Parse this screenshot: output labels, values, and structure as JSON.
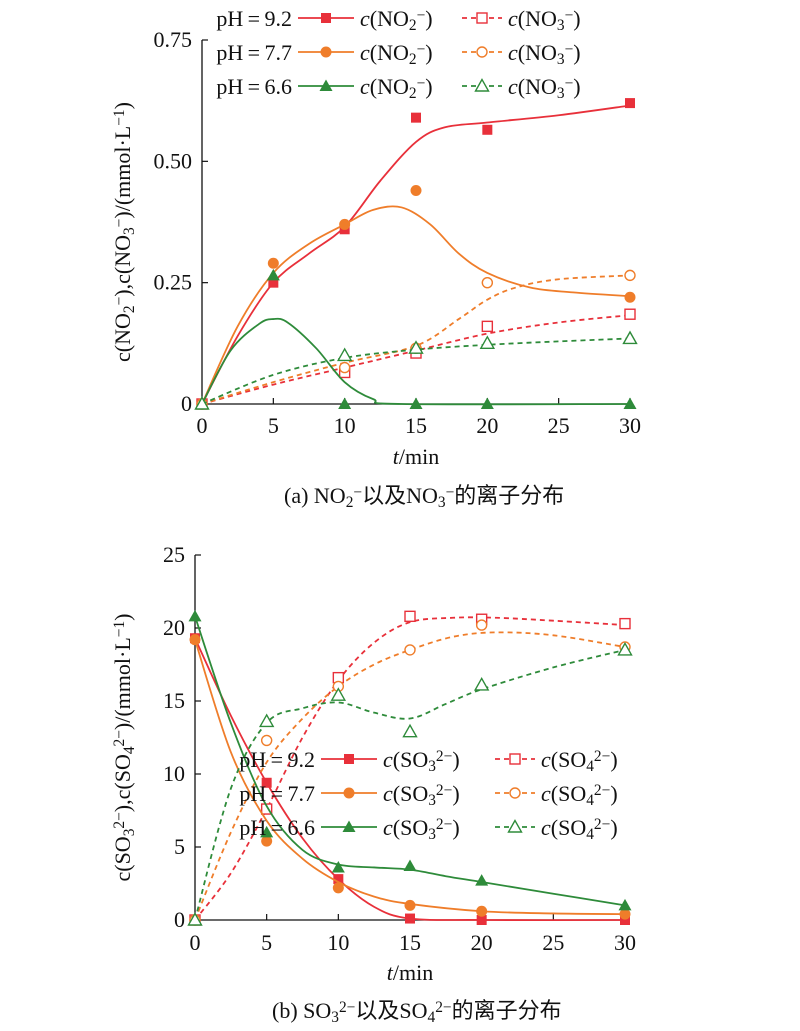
{
  "chart_data": [
    {
      "type": "line",
      "caption": "(a) NO₂⁻以及NO₃⁻的离子分布",
      "xlabel": "t/min",
      "ylabel": "c(NO₂⁻),c(NO₃⁻)/(mmol·L⁻¹)",
      "xlim": [
        0,
        30
      ],
      "ylim": [
        0,
        0.75
      ],
      "xticks": [
        0,
        5,
        10,
        15,
        20,
        25,
        30
      ],
      "xtick_labels": [
        "0",
        "5",
        "10",
        "15",
        "20",
        "25",
        "30"
      ],
      "yticks": [
        0,
        0.25,
        0.5,
        0.75
      ],
      "ytick_labels": [
        "0",
        "0.25",
        "0.50",
        "0.75"
      ],
      "grid": false,
      "legend_position": "top-left",
      "series": [
        {
          "name": "pH=9.2 c(NO₂⁻)",
          "group": "pH=9.2",
          "label": "c(NO₂⁻)",
          "color": "#e8303a",
          "marker": "square",
          "filled": true,
          "dash": false,
          "x": [
            0,
            5,
            10,
            15,
            20,
            30
          ],
          "y": [
            0,
            0.25,
            0.36,
            0.59,
            0.565,
            0.62
          ],
          "curve": [
            [
              0,
              0
            ],
            [
              2.5,
              0.14
            ],
            [
              5,
              0.25
            ],
            [
              7.5,
              0.31
            ],
            [
              10,
              0.365
            ],
            [
              12.5,
              0.46
            ],
            [
              15,
              0.54
            ],
            [
              17,
              0.57
            ],
            [
              20,
              0.58
            ],
            [
              25,
              0.595
            ],
            [
              30,
              0.615
            ]
          ]
        },
        {
          "name": "pH=9.2 c(NO₃⁻)",
          "group": "pH=9.2",
          "label": "c(NO₃⁻)",
          "color": "#e8303a",
          "marker": "square",
          "filled": false,
          "dash": true,
          "x": [
            0,
            10,
            15,
            20,
            30
          ],
          "y": [
            0,
            0.065,
            0.105,
            0.16,
            0.185
          ],
          "curve": [
            [
              0,
              0
            ],
            [
              5,
              0.04
            ],
            [
              10,
              0.075
            ],
            [
              15,
              0.11
            ],
            [
              20,
              0.145
            ],
            [
              25,
              0.168
            ],
            [
              30,
              0.183
            ]
          ]
        },
        {
          "name": "pH=7.7 c(NO₂⁻)",
          "group": "pH=7.7",
          "label": "c(NO₂⁻)",
          "color": "#ef7d2a",
          "marker": "circle",
          "filled": true,
          "dash": false,
          "x": [
            0,
            5,
            10,
            15,
            20,
            30
          ],
          "y": [
            0,
            0.29,
            0.37,
            0.44,
            0.25,
            0.22
          ],
          "curve": [
            [
              0,
              0
            ],
            [
              2.5,
              0.16
            ],
            [
              5,
              0.27
            ],
            [
              7.5,
              0.33
            ],
            [
              10,
              0.37
            ],
            [
              12,
              0.4
            ],
            [
              14,
              0.405
            ],
            [
              16,
              0.37
            ],
            [
              18,
              0.31
            ],
            [
              20,
              0.27
            ],
            [
              23,
              0.24
            ],
            [
              26,
              0.23
            ],
            [
              30,
              0.222
            ]
          ]
        },
        {
          "name": "pH=7.7 c(NO₃⁻)",
          "group": "pH=7.7",
          "label": "c(NO₃⁻)",
          "color": "#ef7d2a",
          "marker": "circle",
          "filled": false,
          "dash": true,
          "x": [
            0,
            10,
            15,
            20,
            30
          ],
          "y": [
            0,
            0.075,
            0.115,
            0.25,
            0.265
          ],
          "curve": [
            [
              0,
              0
            ],
            [
              5,
              0.045
            ],
            [
              10,
              0.085
            ],
            [
              15,
              0.12
            ],
            [
              18,
              0.175
            ],
            [
              20,
              0.215
            ],
            [
              22,
              0.24
            ],
            [
              25,
              0.257
            ],
            [
              30,
              0.265
            ]
          ]
        },
        {
          "name": "pH=6.6 c(NO₂⁻)",
          "group": "pH=6.6",
          "label": "c(NO₂⁻)",
          "color": "#2e8b3a",
          "marker": "triangle",
          "filled": true,
          "dash": false,
          "x": [
            0,
            5,
            10,
            15,
            20,
            30
          ],
          "y": [
            0,
            0.265,
            0,
            0,
            0,
            0
          ],
          "curve": [
            [
              0,
              0
            ],
            [
              2,
              0.11
            ],
            [
              4,
              0.165
            ],
            [
              5,
              0.175
            ],
            [
              6,
              0.168
            ],
            [
              8,
              0.115
            ],
            [
              10,
              0.045
            ],
            [
              12,
              0.01
            ],
            [
              14,
              0
            ],
            [
              30,
              0
            ]
          ]
        },
        {
          "name": "pH=6.6 c(NO₃⁻)",
          "group": "pH=6.6",
          "label": "c(NO₃⁻)",
          "color": "#2e8b3a",
          "marker": "triangle",
          "filled": false,
          "dash": true,
          "x": [
            0,
            10,
            15,
            20,
            30
          ],
          "y": [
            0,
            0.1,
            0.115,
            0.125,
            0.135
          ],
          "curve": [
            [
              0,
              0
            ],
            [
              5,
              0.06
            ],
            [
              10,
              0.095
            ],
            [
              15,
              0.112
            ],
            [
              20,
              0.122
            ],
            [
              25,
              0.129
            ],
            [
              30,
              0.135
            ]
          ]
        }
      ]
    },
    {
      "type": "line",
      "caption": "(b) SO₃²⁻以及SO₄²⁻的离子分布",
      "xlabel": "t/min",
      "ylabel": "c(SO₃²⁻),c(SO₄²⁻)/(mmol·L⁻¹)",
      "xlim": [
        0,
        30
      ],
      "ylim": [
        0,
        25
      ],
      "xticks": [
        0,
        5,
        10,
        15,
        20,
        25,
        30
      ],
      "xtick_labels": [
        "0",
        "5",
        "10",
        "15",
        "20",
        "25",
        "30"
      ],
      "yticks": [
        0,
        5,
        10,
        15,
        20,
        25
      ],
      "ytick_labels": [
        "0",
        "5",
        "10",
        "15",
        "20",
        "25"
      ],
      "grid": false,
      "legend_position": "center-right",
      "series": [
        {
          "name": "pH=9.2 c(SO₃²⁻)",
          "group": "pH=9.2",
          "label": "c(SO₃²⁻)",
          "color": "#e8303a",
          "marker": "square",
          "filled": true,
          "dash": false,
          "x": [
            0,
            5,
            10,
            15,
            20,
            30
          ],
          "y": [
            19.3,
            9.4,
            2.8,
            0.1,
            0,
            0
          ],
          "curve": [
            [
              0,
              19.3
            ],
            [
              2.5,
              14
            ],
            [
              5,
              9.4
            ],
            [
              7.5,
              5.6
            ],
            [
              10,
              2.8
            ],
            [
              12.5,
              0.9
            ],
            [
              15,
              0.1
            ],
            [
              20,
              0
            ],
            [
              30,
              0
            ]
          ]
        },
        {
          "name": "pH=9.2 c(SO₄²⁻)",
          "group": "pH=9.2",
          "label": "c(SO₄²⁻)",
          "color": "#e8303a",
          "marker": "square",
          "filled": false,
          "dash": true,
          "x": [
            0,
            5,
            10,
            15,
            20,
            30
          ],
          "y": [
            0,
            7.6,
            16.6,
            20.8,
            20.6,
            20.3
          ],
          "curve": [
            [
              0,
              0
            ],
            [
              2.5,
              3.2
            ],
            [
              5,
              7.6
            ],
            [
              7.5,
              12.5
            ],
            [
              10,
              16.4
            ],
            [
              12.5,
              19
            ],
            [
              15,
              20.4
            ],
            [
              18,
              20.7
            ],
            [
              21,
              20.7
            ],
            [
              25,
              20.5
            ],
            [
              30,
              20.2
            ]
          ]
        },
        {
          "name": "pH=7.7 c(SO₃²⁻)",
          "group": "pH=7.7",
          "label": "c(SO₃²⁻)",
          "color": "#ef7d2a",
          "marker": "circle",
          "filled": true,
          "dash": false,
          "x": [
            0,
            5,
            10,
            15,
            20,
            30
          ],
          "y": [
            19.2,
            5.4,
            2.2,
            1.0,
            0.6,
            0.4
          ],
          "curve": [
            [
              0,
              19.2
            ],
            [
              2.5,
              11.5
            ],
            [
              5,
              6.8
            ],
            [
              7.5,
              4.2
            ],
            [
              10,
              2.6
            ],
            [
              12.5,
              1.6
            ],
            [
              15,
              1.1
            ],
            [
              20,
              0.6
            ],
            [
              25,
              0.45
            ],
            [
              30,
              0.4
            ]
          ]
        },
        {
          "name": "pH=7.7 c(SO₄²⁻)",
          "group": "pH=7.7",
          "label": "c(SO₄²⁻)",
          "color": "#ef7d2a",
          "marker": "circle",
          "filled": false,
          "dash": true,
          "x": [
            0,
            5,
            10,
            15,
            20,
            30
          ],
          "y": [
            0,
            12.3,
            16.0,
            18.5,
            20.2,
            18.7
          ],
          "curve": [
            [
              0,
              0
            ],
            [
              2.5,
              6
            ],
            [
              5,
              10.8
            ],
            [
              7.5,
              13.8
            ],
            [
              10,
              16
            ],
            [
              12.5,
              17.5
            ],
            [
              15,
              18.5
            ],
            [
              18,
              19.4
            ],
            [
              21,
              19.7
            ],
            [
              25,
              19.5
            ],
            [
              30,
              18.7
            ]
          ]
        },
        {
          "name": "pH=6.6 c(SO₃²⁻)",
          "group": "pH=6.6",
          "label": "c(SO₃²⁻)",
          "color": "#2e8b3a",
          "marker": "triangle",
          "filled": true,
          "dash": false,
          "x": [
            0,
            5,
            10,
            15,
            20,
            30
          ],
          "y": [
            20.8,
            6.0,
            3.6,
            3.7,
            2.7,
            1.0
          ],
          "curve": [
            [
              0,
              20.8
            ],
            [
              2.5,
              13.5
            ],
            [
              5,
              7.8
            ],
            [
              7.5,
              4.8
            ],
            [
              10,
              3.8
            ],
            [
              12.5,
              3.6
            ],
            [
              15,
              3.45
            ],
            [
              17.5,
              3
            ],
            [
              20,
              2.6
            ],
            [
              25,
              1.8
            ],
            [
              30,
              1.0
            ]
          ]
        },
        {
          "name": "pH=6.6 c(SO₄²⁻)",
          "group": "pH=6.6",
          "label": "c(SO₄²⁻)",
          "color": "#2e8b3a",
          "marker": "triangle",
          "filled": false,
          "dash": true,
          "x": [
            0,
            5,
            10,
            15,
            20,
            30
          ],
          "y": [
            0,
            13.6,
            15.4,
            12.9,
            16.1,
            18.5
          ],
          "curve": [
            [
              0,
              0
            ],
            [
              2.5,
              9
            ],
            [
              5,
              13.5
            ],
            [
              7.5,
              14.5
            ],
            [
              10,
              14.9
            ],
            [
              12.5,
              14.2
            ],
            [
              15,
              13.8
            ],
            [
              17.5,
              14.8
            ],
            [
              20,
              15.8
            ],
            [
              25,
              17.3
            ],
            [
              30,
              18.5
            ]
          ]
        }
      ]
    }
  ]
}
